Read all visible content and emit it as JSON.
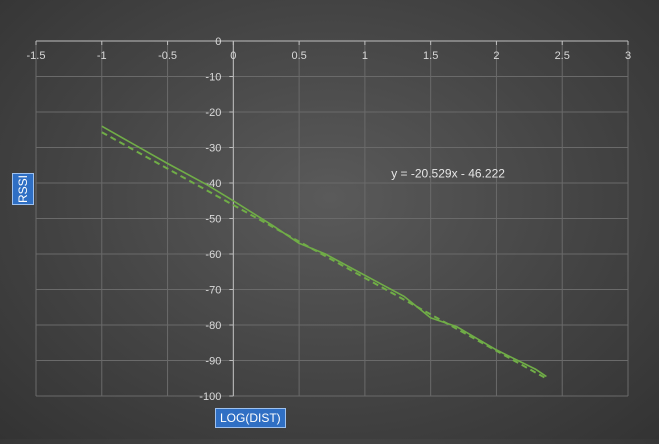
{
  "chart_data": {
    "type": "scatter",
    "title": "",
    "xlabel": "LOG(DIST)",
    "ylabel": "RSSI",
    "xlim": [
      -1.5,
      3
    ],
    "ylim": [
      -100,
      0
    ],
    "xticks": [
      -1.5,
      -1,
      -0.5,
      0,
      0.5,
      1,
      1.5,
      2,
      2.5,
      3
    ],
    "xtick_labels": [
      "-1.5",
      "-1",
      "-0.5",
      "0",
      "0.5",
      "1",
      "1.5",
      "2",
      "2.5",
      "3"
    ],
    "yticks": [
      0,
      -10,
      -20,
      -30,
      -40,
      -50,
      -60,
      -70,
      -80,
      -90,
      -100
    ],
    "ytick_labels": [
      "0",
      "-10",
      "-20",
      "-30",
      "-40",
      "-50",
      "-60",
      "-70",
      "-80",
      "-90",
      "-100"
    ],
    "grid": true,
    "series": [
      {
        "values": [
          [
            -1,
            -24
          ],
          [
            -0.5,
            -34.5
          ],
          [
            -0.2,
            -40.5
          ],
          [
            0,
            -45
          ],
          [
            0.3,
            -52
          ],
          [
            0.5,
            -57
          ],
          [
            0.7,
            -60
          ],
          [
            1,
            -66
          ],
          [
            1.3,
            -72
          ],
          [
            1.5,
            -78
          ],
          [
            1.7,
            -80.5
          ],
          [
            2,
            -87
          ],
          [
            2.3,
            -92.5
          ],
          [
            2.38,
            -94.5
          ]
        ],
        "color": "#70ad47",
        "style": "solid"
      }
    ],
    "trendline": {
      "slope": -20.529,
      "intercept": -46.222,
      "x_range": [
        -1,
        2.38
      ],
      "equation_label": "y = -20.529x - 46.222",
      "color": "#70ad47",
      "style": "dashed"
    }
  }
}
